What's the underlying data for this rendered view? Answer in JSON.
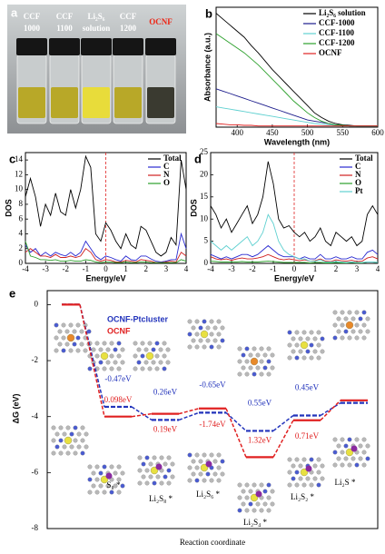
{
  "photo": {
    "panel": "a",
    "labels": [
      [
        "CCF",
        "1000"
      ],
      [
        "CCF",
        "1100"
      ],
      [
        "Li₂S₆",
        "solution"
      ],
      [
        "CCF",
        "1200"
      ],
      [
        "OCNF"
      ]
    ]
  },
  "chart_data": [
    {
      "panel": "b",
      "type": "line",
      "xlabel": "Wavelength (nm)",
      "ylabel": "Absorbance (a.u.)",
      "legend": "upper right",
      "x": [
        370,
        380,
        390,
        400,
        410,
        420,
        430,
        440,
        450,
        460,
        470,
        480,
        490,
        500,
        510,
        520,
        530,
        540,
        550,
        560,
        570,
        580,
        590,
        600
      ],
      "xlim": [
        370,
        600
      ],
      "xticks": [
        400,
        450,
        500,
        550,
        600
      ],
      "ylim": [
        0,
        1
      ],
      "series": [
        {
          "name": "Li₂S₆ solution",
          "color": "#000000",
          "values": [
            0.95,
            0.9,
            0.85,
            0.8,
            0.75,
            0.68,
            0.62,
            0.55,
            0.48,
            0.42,
            0.36,
            0.3,
            0.24,
            0.18,
            0.12,
            0.08,
            0.05,
            0.03,
            0.02,
            0.015,
            0.01,
            0.01,
            0.01,
            0.01
          ]
        },
        {
          "name": "CCF-1000",
          "color": "#1c1c8c",
          "values": [
            0.32,
            0.3,
            0.28,
            0.26,
            0.24,
            0.22,
            0.2,
            0.18,
            0.16,
            0.14,
            0.12,
            0.1,
            0.08,
            0.06,
            0.05,
            0.04,
            0.03,
            0.02,
            0.015,
            0.01,
            0.01,
            0.01,
            0.01,
            0.01
          ]
        },
        {
          "name": "CCF-1100",
          "color": "#5fd0d0",
          "values": [
            0.17,
            0.16,
            0.15,
            0.14,
            0.13,
            0.12,
            0.11,
            0.1,
            0.09,
            0.08,
            0.07,
            0.06,
            0.05,
            0.04,
            0.03,
            0.025,
            0.02,
            0.015,
            0.01,
            0.01,
            0.01,
            0.01,
            0.01,
            0.01
          ]
        },
        {
          "name": "CCF-1200",
          "color": "#2ca02c",
          "values": [
            0.78,
            0.74,
            0.7,
            0.66,
            0.62,
            0.57,
            0.52,
            0.46,
            0.4,
            0.34,
            0.28,
            0.22,
            0.17,
            0.12,
            0.08,
            0.05,
            0.03,
            0.02,
            0.015,
            0.01,
            0.01,
            0.01,
            0.01,
            0.01
          ]
        },
        {
          "name": "OCNF",
          "color": "#e02020",
          "values": [
            0.03,
            0.025,
            0.02,
            0.02,
            0.015,
            0.015,
            0.01,
            0.01,
            0.01,
            0.01,
            0.01,
            0.01,
            0.01,
            0.01,
            0.01,
            0.01,
            0.01,
            0.01,
            0.01,
            0.01,
            0.01,
            0.01,
            0.01,
            0.01
          ]
        }
      ]
    },
    {
      "panel": "c",
      "type": "line",
      "xlabel": "Energy/eV",
      "ylabel": "DOS",
      "legend": "upper right",
      "x": [
        -4,
        -3.75,
        -3.5,
        -3.25,
        -3,
        -2.75,
        -2.5,
        -2.25,
        -2,
        -1.75,
        -1.5,
        -1.25,
        -1,
        -0.75,
        -0.5,
        -0.25,
        0,
        0.25,
        0.5,
        0.75,
        1,
        1.25,
        1.5,
        1.75,
        2,
        2.25,
        2.5,
        2.75,
        3,
        3.25,
        3.5,
        3.75,
        4
      ],
      "xlim": [
        -4,
        4
      ],
      "xticks": [
        -4,
        -3,
        -2,
        -1,
        0,
        1,
        2,
        3,
        4
      ],
      "ylim": [
        0,
        15
      ],
      "yticks": [
        0,
        2,
        4,
        6,
        8,
        10,
        12,
        14
      ],
      "series": [
        {
          "name": "Total",
          "color": "#000000",
          "values": [
            9,
            11.5,
            9,
            5,
            8,
            6.5,
            9.5,
            7,
            6.5,
            10,
            7.5,
            10,
            14.5,
            13,
            4,
            3,
            5.5,
            4.5,
            3,
            2,
            4,
            2.5,
            2,
            5,
            4.5,
            3,
            1.5,
            1,
            1.5,
            3.5,
            2.5,
            14,
            10
          ]
        },
        {
          "name": "C",
          "color": "#2a2ad0",
          "values": [
            2.5,
            1.5,
            2,
            1,
            1.5,
            1,
            1.5,
            1.2,
            1,
            1.5,
            1,
            1.5,
            3,
            2,
            1,
            0.5,
            1,
            0.8,
            0.5,
            0.3,
            1,
            0.5,
            0.4,
            1,
            1,
            0.6,
            0.3,
            0.2,
            0.3,
            0.5,
            0.5,
            4,
            2
          ]
        },
        {
          "name": "N",
          "color": "#d02020",
          "values": [
            1.5,
            2,
            1.5,
            1,
            1,
            0.8,
            1.2,
            0.8,
            0.8,
            1,
            0.8,
            1,
            2,
            1.5,
            0.5,
            0.3,
            0.5,
            0.4,
            0.2,
            0.2,
            0.4,
            0.3,
            0.2,
            0.5,
            0.4,
            0.3,
            0.1,
            0.1,
            0.2,
            0.3,
            0.2,
            1.5,
            1
          ]
        },
        {
          "name": "O",
          "color": "#2ca02c",
          "values": [
            3,
            1,
            0.8,
            0.5,
            0.5,
            0.4,
            0.5,
            0.3,
            0.3,
            0.4,
            0.3,
            0.3,
            0.5,
            0.4,
            0.2,
            0.1,
            0.2,
            0.2,
            0.1,
            0.1,
            0.2,
            0.1,
            0.1,
            0.2,
            0.2,
            0.1,
            0.1,
            0.1,
            0.1,
            0.1,
            0.1,
            0.5,
            0.3
          ]
        }
      ]
    },
    {
      "panel": "d",
      "type": "line",
      "xlabel": "Energy/eV",
      "ylabel": "DOS",
      "legend": "upper right",
      "x": [
        -4,
        -3.75,
        -3.5,
        -3.25,
        -3,
        -2.75,
        -2.5,
        -2.25,
        -2,
        -1.75,
        -1.5,
        -1.25,
        -1,
        -0.75,
        -0.5,
        -0.25,
        0,
        0.25,
        0.5,
        0.75,
        1,
        1.25,
        1.5,
        1.75,
        2,
        2.25,
        2.5,
        2.75,
        3,
        3.25,
        3.5,
        3.75,
        4
      ],
      "xlim": [
        -4,
        4
      ],
      "xticks": [
        -4,
        -3,
        -2,
        -1,
        0,
        1,
        2,
        3,
        4
      ],
      "ylim": [
        0,
        25
      ],
      "yticks": [
        0,
        5,
        10,
        15,
        20,
        25
      ],
      "series": [
        {
          "name": "Total",
          "color": "#000000",
          "values": [
            13,
            11,
            8,
            10,
            7,
            9,
            11,
            13,
            9,
            11,
            15,
            23,
            18,
            10,
            8,
            8.5,
            7,
            6,
            7,
            5,
            6,
            8,
            5,
            4,
            7,
            6,
            5,
            6,
            4,
            5,
            11,
            13,
            11
          ]
        },
        {
          "name": "C",
          "color": "#2a2ad0",
          "values": [
            2,
            1.5,
            1,
            1.5,
            1,
            1.5,
            2,
            2,
            1.5,
            2,
            3,
            4,
            3,
            2,
            1.5,
            1.5,
            1.5,
            1,
            1.5,
            1,
            1,
            2,
            1,
            1,
            1.5,
            1,
            1,
            1.5,
            1,
            1,
            2.5,
            3,
            2
          ]
        },
        {
          "name": "N",
          "color": "#d02020",
          "values": [
            1.5,
            1,
            0.8,
            1,
            0.7,
            1,
            1.2,
            1,
            1,
            1.2,
            1.5,
            2,
            1.5,
            1,
            0.8,
            1,
            0.8,
            0.6,
            0.8,
            0.5,
            0.6,
            1,
            0.5,
            0.4,
            0.8,
            0.6,
            0.5,
            0.7,
            0.4,
            0.5,
            1.2,
            1.5,
            1
          ]
        },
        {
          "name": "O",
          "color": "#2ca02c",
          "values": [
            0.5,
            0.4,
            0.3,
            0.3,
            0.3,
            0.3,
            0.4,
            0.3,
            0.3,
            0.3,
            0.4,
            0.5,
            0.4,
            0.3,
            0.2,
            0.2,
            0.2,
            0.2,
            0.2,
            0.1,
            0.2,
            0.2,
            0.1,
            0.1,
            0.2,
            0.1,
            0.1,
            0.2,
            0.1,
            0.1,
            0.3,
            0.3,
            0.2
          ]
        },
        {
          "name": "Pt",
          "color": "#5fd0d0",
          "values": [
            5,
            4,
            3,
            4,
            3,
            4,
            5,
            6,
            4,
            5,
            7,
            11,
            9,
            5,
            3,
            2,
            1.5,
            1,
            1,
            0.5,
            0.5,
            0.8,
            0.3,
            0.3,
            0.4,
            0.3,
            0.2,
            0.3,
            0.2,
            0.2,
            0.3,
            0.3,
            0.2
          ]
        }
      ]
    },
    {
      "panel": "e",
      "type": "step",
      "xlabel": "Reaction coordinate",
      "ylabel": "ΔG (eV)",
      "legend": "upper left",
      "categories": [
        null,
        "S₈ *",
        "Li₂S₈ *",
        "Li₂S₆ *",
        "Li₂S₄ *",
        "Li₂S₂ *",
        "Li₂S *"
      ],
      "ylim": [
        -8,
        0.5
      ],
      "yticks": [
        0,
        -2,
        -4,
        -6,
        -8
      ],
      "series": [
        {
          "name": "OCNF-Ptcluster",
          "color": "#2233bb",
          "values": [
            0,
            -3.65,
            -4.12,
            -3.86,
            -4.51,
            -3.96,
            -3.51
          ],
          "change_labels": [
            null,
            "-0.47eV",
            "0.26eV",
            "-0.65eV",
            "0.55eV",
            "0.45eV"
          ]
        },
        {
          "name": "OCNF",
          "color": "#e02020",
          "values": [
            0,
            -4.0,
            -3.9,
            -3.71,
            -5.45,
            -4.13,
            -3.42
          ],
          "change_labels": [
            null,
            "0.098eV",
            "0.19eV",
            "-1.74eV",
            "1.32eV",
            "0.71eV"
          ]
        }
      ]
    }
  ]
}
